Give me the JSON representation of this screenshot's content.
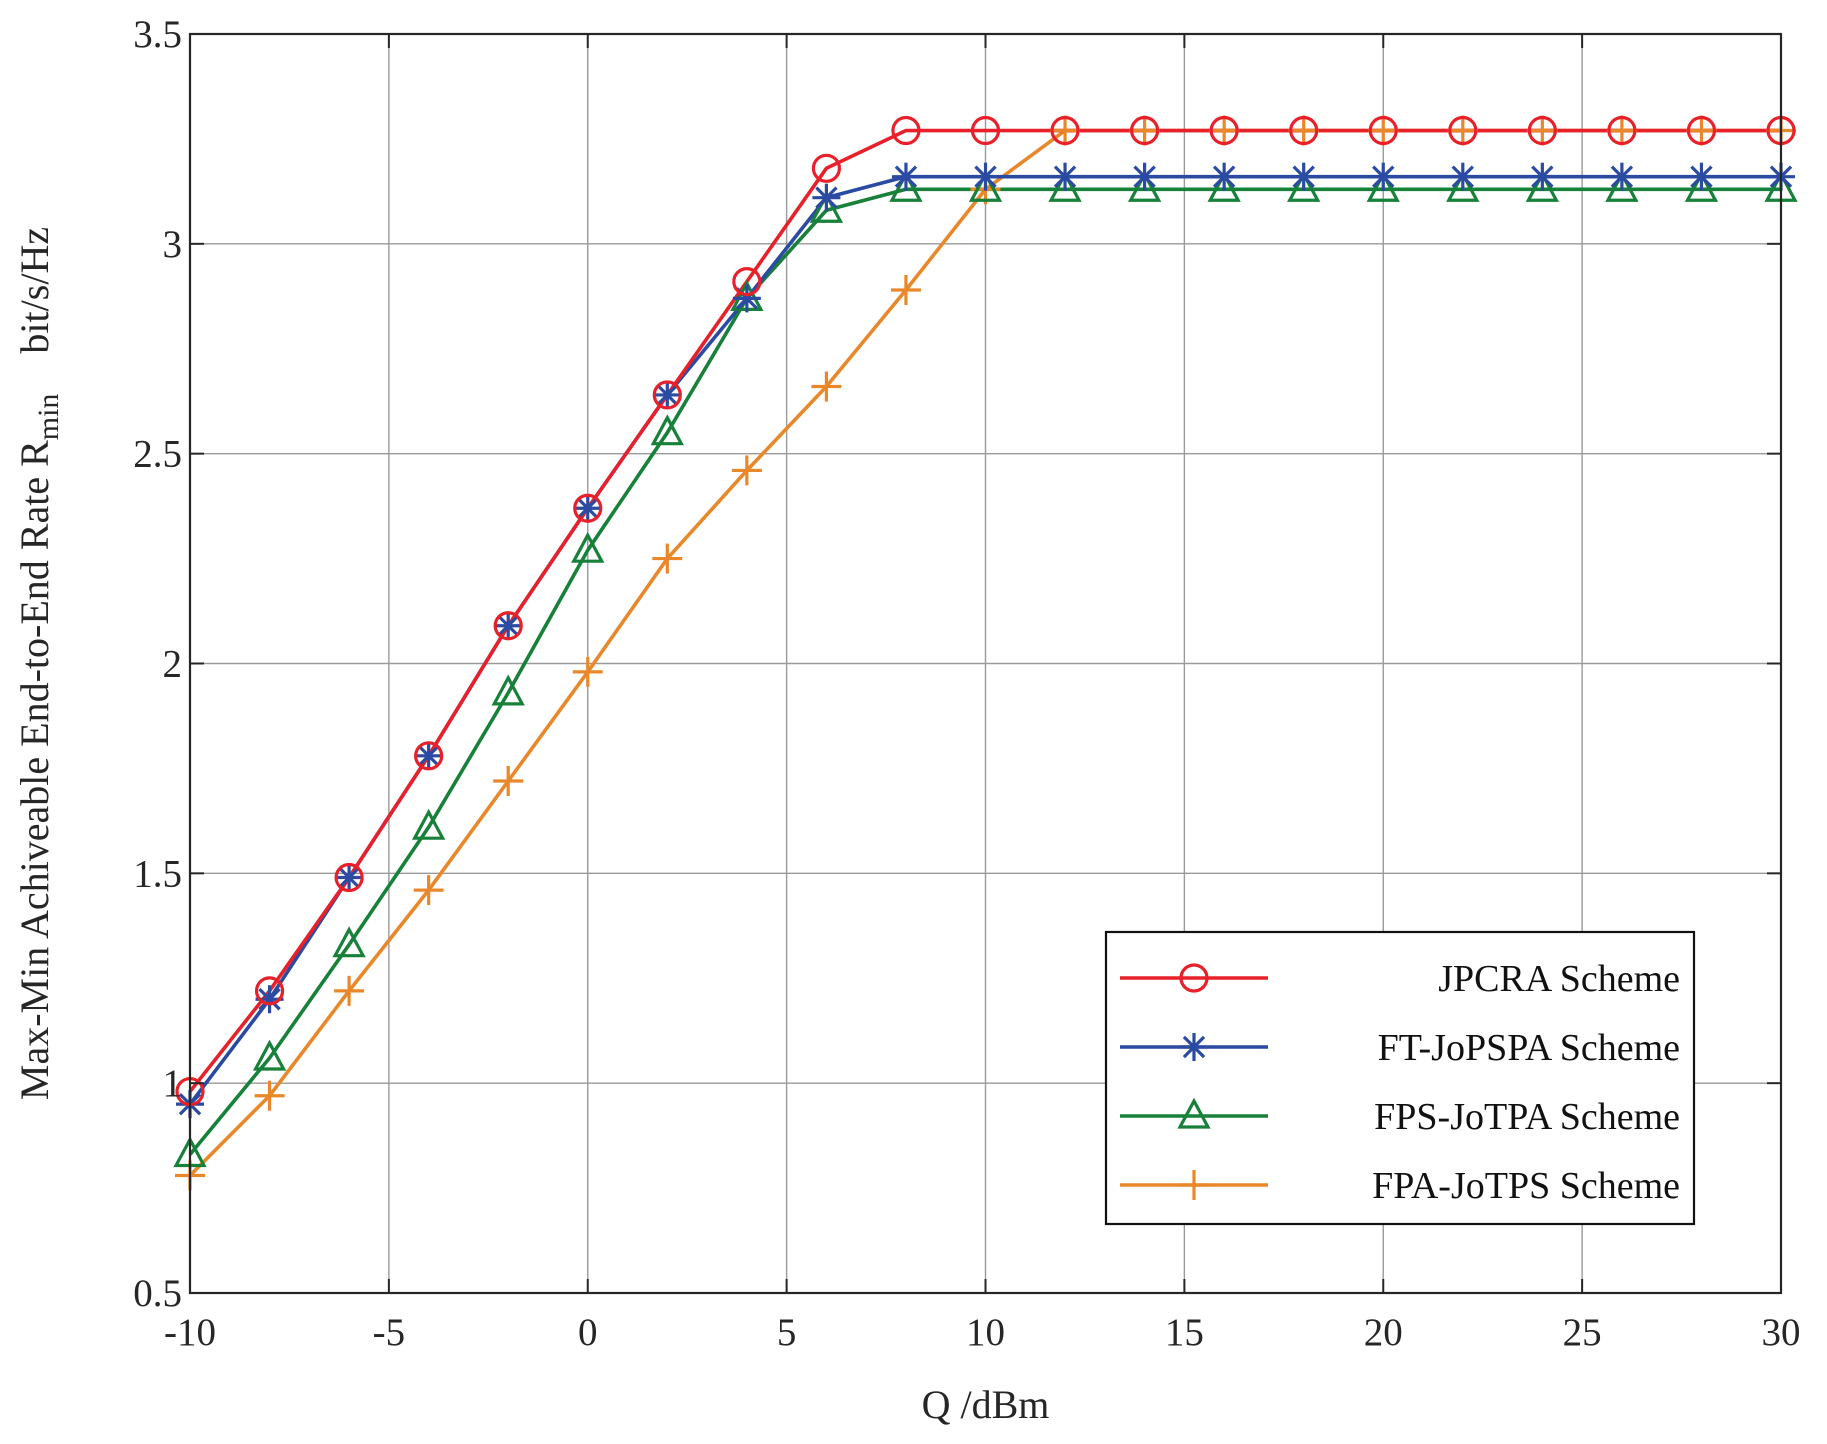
{
  "chart_data": {
    "type": "line",
    "title": "",
    "xlabel": "Q /dBm",
    "ylabel": {
      "main": "Max-Min Achiveable End-to-End Rate R",
      "subscript": "min",
      "unit": "bit/s/Hz"
    },
    "xlim": [
      -10,
      30
    ],
    "ylim": [
      0.5,
      3.5
    ],
    "xticks": [
      -10,
      -5,
      0,
      5,
      10,
      15,
      20,
      25,
      30
    ],
    "yticks": [
      0.5,
      1,
      1.5,
      2,
      2.5,
      3,
      3.5
    ],
    "xtick_labels": [
      "-10",
      "-5",
      "0",
      "5",
      "10",
      "15",
      "20",
      "25",
      "30"
    ],
    "ytick_labels": [
      "0.5",
      "1",
      "1.5",
      "2",
      "2.5",
      "3",
      "3.5"
    ],
    "grid": true,
    "legend_position": "bottom-right",
    "x": [
      -10,
      -8,
      -6,
      -4,
      -2,
      0,
      2,
      4,
      6,
      8,
      10,
      12,
      14,
      16,
      18,
      20,
      22,
      24,
      26,
      28,
      30
    ],
    "series": [
      {
        "name": "JPCRA Scheme",
        "color": "#e8202a",
        "marker": "circle",
        "values": [
          0.98,
          1.22,
          1.49,
          1.78,
          2.09,
          2.37,
          2.64,
          2.91,
          3.18,
          3.27,
          3.27,
          3.27,
          3.27,
          3.27,
          3.27,
          3.27,
          3.27,
          3.27,
          3.27,
          3.27,
          3.27
        ]
      },
      {
        "name": "FT-JoPSPA Scheme",
        "color": "#2b4ba3",
        "marker": "asterisk",
        "values": [
          0.95,
          1.2,
          1.49,
          1.78,
          2.09,
          2.37,
          2.64,
          2.87,
          3.11,
          3.16,
          3.16,
          3.16,
          3.16,
          3.16,
          3.16,
          3.16,
          3.16,
          3.16,
          3.16,
          3.16,
          3.16
        ]
      },
      {
        "name": "FPS-JoTPA Scheme",
        "color": "#17813a",
        "marker": "triangle",
        "values": [
          0.83,
          1.06,
          1.33,
          1.61,
          1.93,
          2.27,
          2.55,
          2.87,
          3.08,
          3.13,
          3.13,
          3.13,
          3.13,
          3.13,
          3.13,
          3.13,
          3.13,
          3.13,
          3.13,
          3.13,
          3.13
        ]
      },
      {
        "name": "FPA-JoTPS Scheme",
        "color": "#e8882a",
        "marker": "plus",
        "values": [
          0.78,
          0.97,
          1.22,
          1.46,
          1.72,
          1.98,
          2.25,
          2.46,
          2.66,
          2.89,
          3.13,
          3.27,
          3.27,
          3.27,
          3.27,
          3.27,
          3.27,
          3.27,
          3.27,
          3.27,
          3.27
        ]
      }
    ]
  }
}
